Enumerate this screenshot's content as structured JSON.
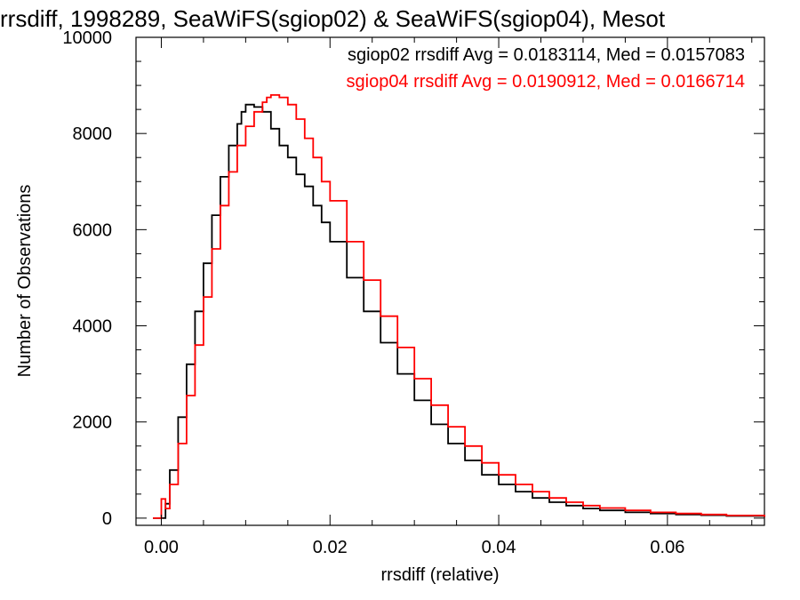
{
  "chart_data": {
    "type": "line",
    "title": "rrsdiff, 1998289, SeaWiFS(sgiop02) & SeaWiFS(sgiop04), Mesot",
    "xlabel": "rrsdiff (relative)",
    "ylabel": "Number of Observations",
    "xlim": [
      -0.003,
      0.0715
    ],
    "ylim": [
      -150,
      10000
    ],
    "xticks": [
      0.0,
      0.02,
      0.04,
      0.06
    ],
    "xtick_labels": [
      "0.00",
      "0.02",
      "0.04",
      "0.06"
    ],
    "yticks": [
      0,
      2000,
      4000,
      6000,
      8000,
      10000
    ],
    "ytick_labels": [
      "0",
      "2000",
      "4000",
      "6000",
      "8000",
      "10000"
    ],
    "grid": false,
    "legend_position": "top-right",
    "annotations": [
      {
        "text": "sgiop02 rrsdiff Avg = 0.0183114, Med = 0.0157083",
        "color": "#000000"
      },
      {
        "text": "sgiop04 rrsdiff Avg = 0.0190912, Med = 0.0166714",
        "color": "#ff0000"
      }
    ],
    "series": [
      {
        "color": "#000000",
        "step": true,
        "x": [
          -0.001,
          0.0,
          0.0005,
          0.001,
          0.002,
          0.003,
          0.004,
          0.005,
          0.006,
          0.007,
          0.008,
          0.009,
          0.0095,
          0.01,
          0.0105,
          0.011,
          0.0115,
          0.012,
          0.013,
          0.014,
          0.015,
          0.016,
          0.017,
          0.018,
          0.019,
          0.02,
          0.022,
          0.024,
          0.026,
          0.028,
          0.03,
          0.032,
          0.034,
          0.036,
          0.038,
          0.04,
          0.042,
          0.044,
          0.046,
          0.048,
          0.05,
          0.052,
          0.055,
          0.058,
          0.061,
          0.064,
          0.067,
          0.0715
        ],
        "y": [
          0,
          0,
          300,
          1000,
          2100,
          3200,
          4300,
          5300,
          6300,
          7100,
          7750,
          8200,
          8450,
          8600,
          8600,
          8550,
          8550,
          8450,
          8100,
          7750,
          7500,
          7150,
          6900,
          6500,
          6150,
          5750,
          5000,
          4300,
          3650,
          3000,
          2450,
          1950,
          1550,
          1200,
          900,
          700,
          550,
          420,
          330,
          260,
          200,
          160,
          120,
          95,
          75,
          60,
          45,
          20
        ]
      },
      {
        "color": "#ff0000",
        "step": true,
        "x": [
          -0.001,
          0.0,
          0.0005,
          0.001,
          0.002,
          0.003,
          0.004,
          0.005,
          0.006,
          0.007,
          0.008,
          0.009,
          0.01,
          0.011,
          0.012,
          0.0125,
          0.013,
          0.0135,
          0.014,
          0.015,
          0.016,
          0.017,
          0.018,
          0.019,
          0.02,
          0.022,
          0.024,
          0.026,
          0.028,
          0.03,
          0.032,
          0.034,
          0.036,
          0.038,
          0.04,
          0.042,
          0.044,
          0.046,
          0.048,
          0.05,
          0.052,
          0.055,
          0.058,
          0.061,
          0.064,
          0.067,
          0.0715
        ],
        "y": [
          0,
          400,
          200,
          700,
          1550,
          2550,
          3600,
          4600,
          5600,
          6500,
          7200,
          7750,
          8150,
          8450,
          8650,
          8750,
          8800,
          8800,
          8750,
          8600,
          8300,
          7900,
          7500,
          7000,
          6600,
          5750,
          4950,
          4200,
          3550,
          2900,
          2350,
          1900,
          1500,
          1150,
          900,
          700,
          550,
          420,
          330,
          260,
          210,
          160,
          120,
          95,
          75,
          55,
          25
        ]
      }
    ]
  }
}
